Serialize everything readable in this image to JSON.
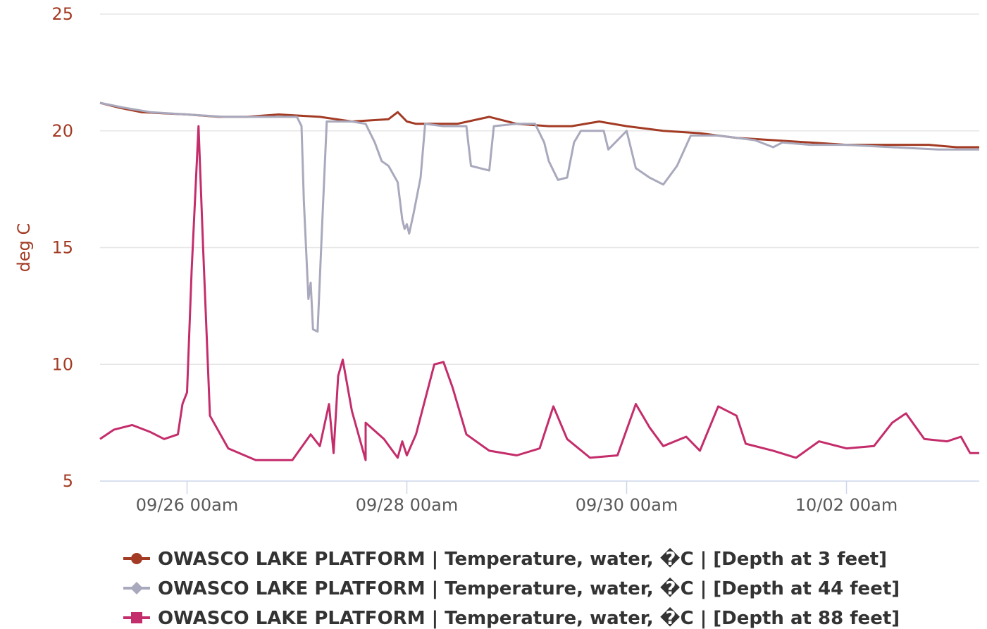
{
  "chart_data": {
    "type": "line",
    "title": "",
    "xlabel": "",
    "ylabel": "deg C",
    "ylim": [
      5,
      25
    ],
    "y_ticks": [
      5,
      10,
      15,
      20,
      25
    ],
    "x_range": [
      "2025-09-25T05:00",
      "2025-10-03T05:00"
    ],
    "x_ticks": [
      {
        "t": "2025-09-26T00:00",
        "label": "09/26 00am"
      },
      {
        "t": "2025-09-28T00:00",
        "label": "09/28 00am"
      },
      {
        "t": "2025-09-30T00:00",
        "label": "09/30 00am"
      },
      {
        "t": "2025-10-02T00:00",
        "label": "10/02 00am"
      }
    ],
    "grid": true,
    "legend_position": "bottom",
    "series": [
      {
        "name": "OWASCO LAKE PLATFORM | Temperature, water, �C | [Depth at 3 feet]",
        "color": "#a33b24",
        "marker": "circle",
        "points": [
          [
            "2025-09-25T05:00",
            21.2
          ],
          [
            "2025-09-25T09:00",
            21.0
          ],
          [
            "2025-09-25T14:00",
            20.8
          ],
          [
            "2025-09-26T00:00",
            20.7
          ],
          [
            "2025-09-26T07:00",
            20.6
          ],
          [
            "2025-09-26T13:00",
            20.6
          ],
          [
            "2025-09-26T20:00",
            20.7
          ],
          [
            "2025-09-27T05:00",
            20.6
          ],
          [
            "2025-09-27T12:00",
            20.4
          ],
          [
            "2025-09-27T20:00",
            20.5
          ],
          [
            "2025-09-28T00:00",
            20.4
          ],
          [
            "2025-09-27T22:00",
            20.8
          ],
          [
            "2025-09-28T02:00",
            20.3
          ],
          [
            "2025-09-28T11:00",
            20.3
          ],
          [
            "2025-09-28T18:00",
            20.6
          ],
          [
            "2025-09-29T00:00",
            20.3
          ],
          [
            "2025-09-29T07:00",
            20.2
          ],
          [
            "2025-09-29T12:00",
            20.2
          ],
          [
            "2025-09-29T18:00",
            20.4
          ],
          [
            "2025-09-30T00:00",
            20.2
          ],
          [
            "2025-09-30T08:00",
            20.0
          ],
          [
            "2025-09-30T16:00",
            19.9
          ],
          [
            "2025-10-01T00:00",
            19.7
          ],
          [
            "2025-10-01T08:00",
            19.6
          ],
          [
            "2025-10-01T16:00",
            19.5
          ],
          [
            "2025-10-02T00:00",
            19.4
          ],
          [
            "2025-10-02T10:00",
            19.4
          ],
          [
            "2025-10-02T18:00",
            19.4
          ],
          [
            "2025-10-03T00:00",
            19.3
          ],
          [
            "2025-10-03T05:00",
            19.3
          ]
        ]
      },
      {
        "name": "OWASCO LAKE PLATFORM | Temperature, water, �C | [Depth at 44 feet]",
        "color": "#a9a9bd",
        "marker": "diamond",
        "points": [
          [
            "2025-09-25T05:00",
            21.2
          ],
          [
            "2025-09-25T10:00",
            21.0
          ],
          [
            "2025-09-25T16:00",
            20.8
          ],
          [
            "2025-09-26T00:00",
            20.7
          ],
          [
            "2025-09-26T08:00",
            20.6
          ],
          [
            "2025-09-26T16:00",
            20.6
          ],
          [
            "2025-09-27T00:00",
            20.6
          ],
          [
            "2025-09-27T01:00",
            20.2
          ],
          [
            "2025-09-27T01:30",
            17.0
          ],
          [
            "2025-09-27T02:30",
            12.8
          ],
          [
            "2025-09-27T03:00",
            13.5
          ],
          [
            "2025-09-27T03:30",
            11.5
          ],
          [
            "2025-09-27T04:30",
            11.4
          ],
          [
            "2025-09-27T05:30",
            16.0
          ],
          [
            "2025-09-27T06:30",
            20.4
          ],
          [
            "2025-09-27T12:00",
            20.4
          ],
          [
            "2025-09-27T15:00",
            20.3
          ],
          [
            "2025-09-27T17:00",
            19.5
          ],
          [
            "2025-09-27T18:30",
            18.7
          ],
          [
            "2025-09-27T20:00",
            18.5
          ],
          [
            "2025-09-27T22:00",
            17.8
          ],
          [
            "2025-09-27T23:00",
            16.2
          ],
          [
            "2025-09-28T00:00",
            16.0
          ],
          [
            "2025-09-27T23:30",
            15.8
          ],
          [
            "2025-09-28T00:30",
            15.6
          ],
          [
            "2025-09-28T01:30",
            16.5
          ],
          [
            "2025-09-28T03:00",
            18.0
          ],
          [
            "2025-09-28T04:00",
            20.3
          ],
          [
            "2025-09-28T08:00",
            20.2
          ],
          [
            "2025-09-28T13:00",
            20.2
          ],
          [
            "2025-09-28T14:00",
            18.5
          ],
          [
            "2025-09-28T16:00",
            18.4
          ],
          [
            "2025-09-28T18:00",
            18.3
          ],
          [
            "2025-09-28T19:00",
            20.2
          ],
          [
            "2025-09-29T00:00",
            20.3
          ],
          [
            "2025-09-29T04:00",
            20.3
          ],
          [
            "2025-09-29T06:00",
            19.5
          ],
          [
            "2025-09-29T07:00",
            18.7
          ],
          [
            "2025-09-29T09:00",
            17.9
          ],
          [
            "2025-09-29T11:00",
            18.0
          ],
          [
            "2025-09-29T12:30",
            19.5
          ],
          [
            "2025-09-29T14:00",
            20.0
          ],
          [
            "2025-09-29T19:00",
            20.0
          ],
          [
            "2025-09-29T20:00",
            19.2
          ],
          [
            "2025-09-30T00:00",
            20.0
          ],
          [
            "2025-09-30T02:00",
            18.4
          ],
          [
            "2025-09-30T05:00",
            18.0
          ],
          [
            "2025-09-30T08:00",
            17.7
          ],
          [
            "2025-09-30T11:00",
            18.5
          ],
          [
            "2025-09-30T14:00",
            19.8
          ],
          [
            "2025-09-30T20:00",
            19.8
          ],
          [
            "2025-10-01T04:00",
            19.6
          ],
          [
            "2025-10-01T08:00",
            19.3
          ],
          [
            "2025-10-01T10:00",
            19.5
          ],
          [
            "2025-10-01T16:00",
            19.4
          ],
          [
            "2025-10-02T00:00",
            19.4
          ],
          [
            "2025-10-02T10:00",
            19.3
          ],
          [
            "2025-10-02T20:00",
            19.2
          ],
          [
            "2025-10-03T05:00",
            19.2
          ]
        ]
      },
      {
        "name": "OWASCO LAKE PLATFORM | Temperature, water, �C | [Depth at 88 feet]",
        "color": "#c42d6b",
        "marker": "square",
        "points": [
          [
            "2025-09-25T05:00",
            6.8
          ],
          [
            "2025-09-25T08:00",
            7.2
          ],
          [
            "2025-09-25T12:00",
            7.4
          ],
          [
            "2025-09-25T16:00",
            7.1
          ],
          [
            "2025-09-25T19:00",
            6.8
          ],
          [
            "2025-09-25T22:00",
            7.0
          ],
          [
            "2025-09-25T23:00",
            8.3
          ],
          [
            "2025-09-26T00:00",
            8.8
          ],
          [
            "2025-09-26T01:00",
            14.0
          ],
          [
            "2025-09-26T02:30",
            20.2
          ],
          [
            "2025-09-26T03:30",
            15.0
          ],
          [
            "2025-09-26T05:00",
            7.8
          ],
          [
            "2025-09-26T09:00",
            6.4
          ],
          [
            "2025-09-26T15:00",
            5.9
          ],
          [
            "2025-09-26T23:00",
            5.9
          ],
          [
            "2025-09-27T03:00",
            7.0
          ],
          [
            "2025-09-27T08:00",
            6.2
          ],
          [
            "2025-09-27T15:00",
            5.9
          ],
          [
            "2025-09-27T22:00",
            6.0
          ],
          [
            "2025-09-28T00:00",
            6.1
          ],
          [
            "2025-09-27T05:00",
            6.5
          ],
          [
            "2025-09-27T07:00",
            8.3
          ],
          [
            "2025-09-27T09:00",
            9.5
          ],
          [
            "2025-09-27T10:00",
            10.2
          ],
          [
            "2025-09-27T12:00",
            8.0
          ],
          [
            "2025-09-27T15:00",
            7.5
          ],
          [
            "2025-09-27T19:00",
            6.8
          ],
          [
            "2025-09-27T23:00",
            6.7
          ],
          [
            "2025-09-28T02:00",
            7.0
          ],
          [
            "2025-09-28T04:00",
            8.5
          ],
          [
            "2025-09-28T06:00",
            10.0
          ],
          [
            "2025-09-28T08:00",
            10.1
          ],
          [
            "2025-09-28T10:00",
            9.0
          ],
          [
            "2025-09-28T13:00",
            7.0
          ],
          [
            "2025-09-28T18:00",
            6.3
          ],
          [
            "2025-09-29T00:00",
            6.1
          ],
          [
            "2025-09-29T05:00",
            6.4
          ],
          [
            "2025-09-29T08:00",
            8.2
          ],
          [
            "2025-09-29T11:00",
            6.8
          ],
          [
            "2025-09-29T16:00",
            6.0
          ],
          [
            "2025-09-29T22:00",
            6.1
          ],
          [
            "2025-09-30T02:00",
            8.3
          ],
          [
            "2025-09-30T05:00",
            7.3
          ],
          [
            "2025-09-30T08:00",
            6.5
          ],
          [
            "2025-09-30T13:00",
            6.9
          ],
          [
            "2025-09-30T16:00",
            6.3
          ],
          [
            "2025-09-30T20:00",
            8.2
          ],
          [
            "2025-10-01T00:00",
            7.8
          ],
          [
            "2025-10-01T02:00",
            6.6
          ],
          [
            "2025-10-01T08:00",
            6.3
          ],
          [
            "2025-10-01T13:00",
            6.0
          ],
          [
            "2025-10-01T18:00",
            6.7
          ],
          [
            "2025-10-02T00:00",
            6.4
          ],
          [
            "2025-10-02T06:00",
            6.5
          ],
          [
            "2025-10-02T10:00",
            7.5
          ],
          [
            "2025-10-02T13:00",
            7.9
          ],
          [
            "2025-10-02T17:00",
            6.8
          ],
          [
            "2025-10-02T22:00",
            6.7
          ],
          [
            "2025-10-03T01:00",
            6.9
          ],
          [
            "2025-10-03T03:00",
            6.2
          ],
          [
            "2025-10-03T05:00",
            6.2
          ]
        ]
      }
    ]
  }
}
